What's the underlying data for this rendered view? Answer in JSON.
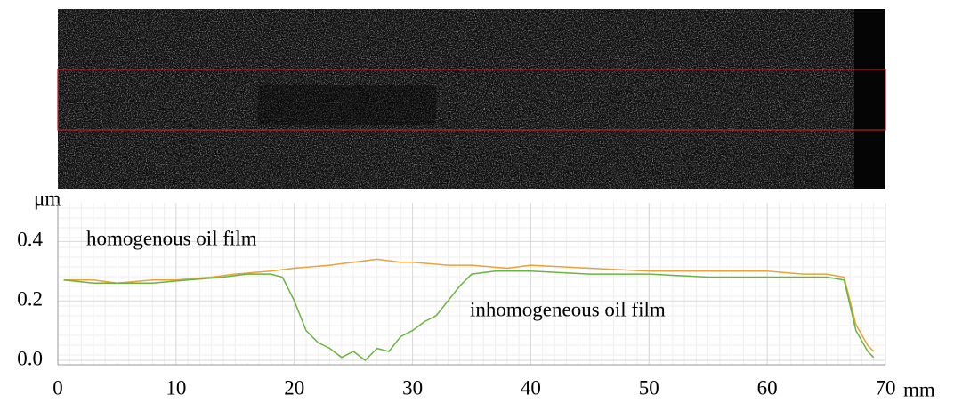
{
  "chart_data": {
    "type": "line",
    "y_label": "μm",
    "x_label": "mm",
    "annotations": [
      "homogenous oil film",
      "inhomogeneous oil film"
    ],
    "series": [
      {
        "name": "homogenous oil film",
        "color": "#e8a33a",
        "x": [
          0.5,
          3,
          5,
          8,
          10,
          13,
          15,
          18,
          20,
          23,
          25,
          27,
          29,
          30,
          33,
          35,
          38,
          40,
          45,
          50,
          55,
          60,
          63,
          65,
          66.5,
          67.5,
          68.5,
          69
        ],
        "values": [
          0.27,
          0.27,
          0.26,
          0.27,
          0.27,
          0.28,
          0.29,
          0.3,
          0.31,
          0.32,
          0.33,
          0.34,
          0.33,
          0.33,
          0.32,
          0.32,
          0.31,
          0.32,
          0.31,
          0.3,
          0.3,
          0.3,
          0.29,
          0.29,
          0.28,
          0.12,
          0.05,
          0.03
        ]
      },
      {
        "name": "inhomogeneous oil film",
        "color": "#6ab43e",
        "x": [
          0.5,
          3,
          5,
          8,
          11,
          14,
          16,
          18,
          19,
          20,
          21,
          22,
          23,
          24,
          25,
          26,
          27,
          28,
          29,
          30,
          31,
          32,
          33,
          34,
          35,
          37,
          40,
          45,
          50,
          55,
          60,
          65,
          66.5,
          67.5,
          68.5,
          69
        ],
        "values": [
          0.27,
          0.26,
          0.26,
          0.26,
          0.27,
          0.28,
          0.29,
          0.29,
          0.28,
          0.2,
          0.1,
          0.06,
          0.04,
          0.01,
          0.03,
          0.0,
          0.04,
          0.03,
          0.08,
          0.1,
          0.13,
          0.15,
          0.2,
          0.25,
          0.29,
          0.3,
          0.3,
          0.29,
          0.29,
          0.28,
          0.28,
          0.28,
          0.27,
          0.1,
          0.03,
          0.01
        ]
      }
    ],
    "xlim": [
      0,
      70
    ],
    "xticks": [
      0,
      10,
      20,
      30,
      40,
      50,
      60,
      70
    ],
    "ylim": [
      -0.015,
      0.53
    ],
    "yticks": [
      {
        "value": 0,
        "label": "0.0"
      },
      0.2,
      0.4
    ],
    "grid": true
  }
}
